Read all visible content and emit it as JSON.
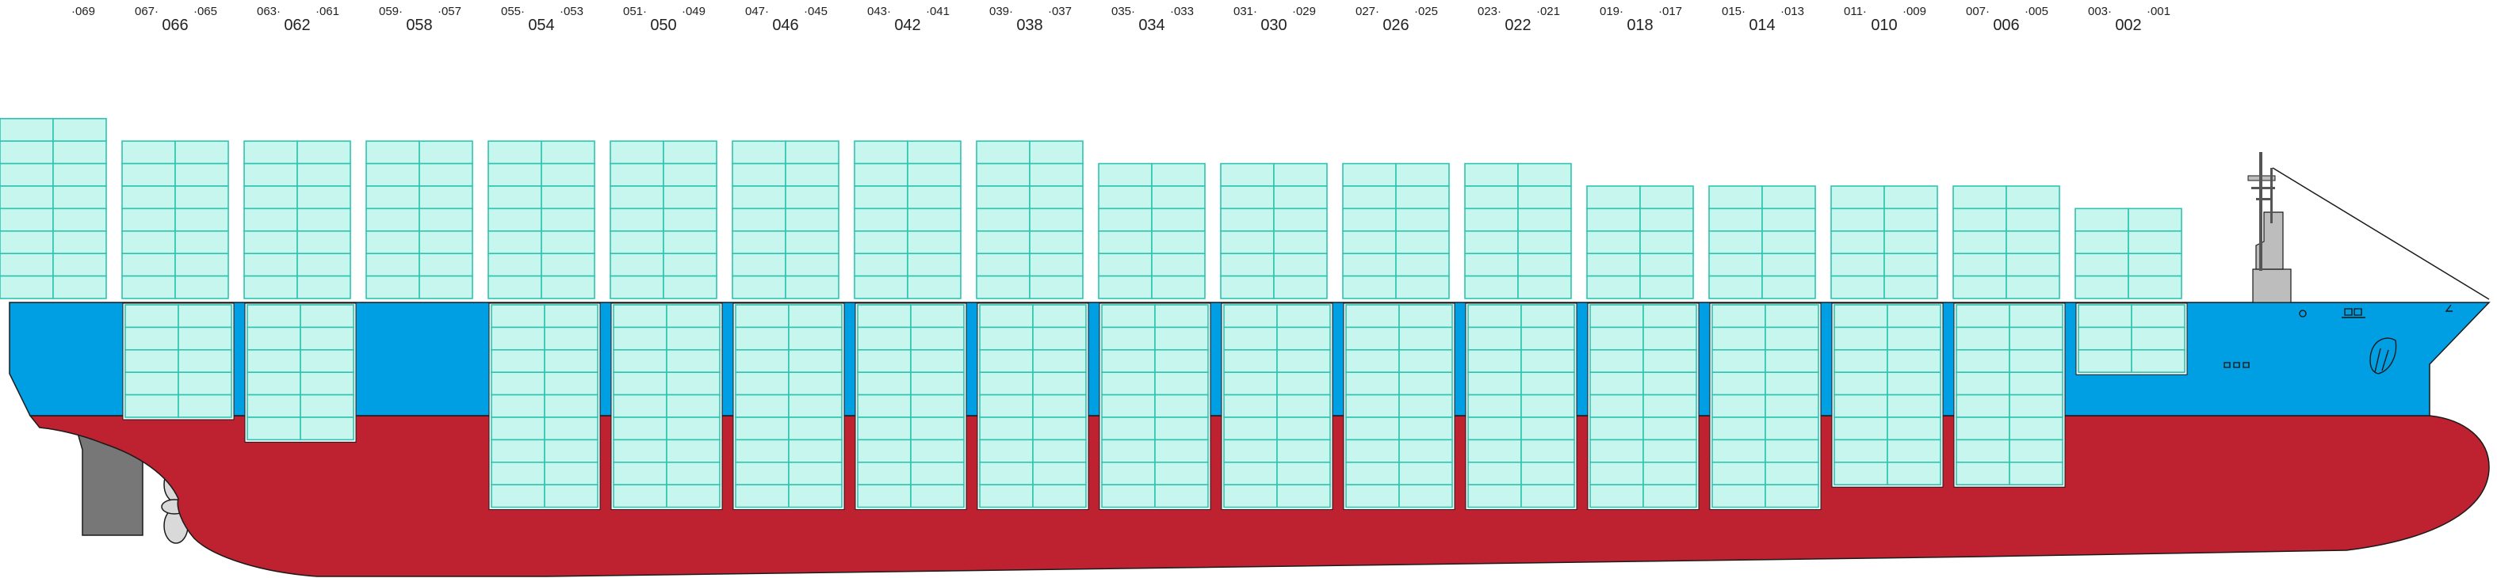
{
  "colors": {
    "hull_upper": "#009fe3",
    "hull_lower": "#be2230",
    "container_fill": "#c6f6ee",
    "container_line": "#2ec4b0",
    "outline": "#1a1a1a",
    "rudder": "#777777",
    "superstructure": "#bdbdbd"
  },
  "bays": [
    {
      "bay_label": "",
      "left_label": "",
      "right_label": "069",
      "deck_tiers": 8,
      "hold_tiers": 0
    },
    {
      "bay_label": "066",
      "left_label": "067",
      "right_label": "065",
      "deck_tiers": 7,
      "hold_tiers": 5
    },
    {
      "bay_label": "062",
      "left_label": "063",
      "right_label": "061",
      "deck_tiers": 7,
      "hold_tiers": 6
    },
    {
      "bay_label": "058",
      "left_label": "059",
      "right_label": "057",
      "deck_tiers": 7,
      "hold_tiers": 0
    },
    {
      "bay_label": "054",
      "left_label": "055",
      "right_label": "053",
      "deck_tiers": 7,
      "hold_tiers": 9
    },
    {
      "bay_label": "050",
      "left_label": "051",
      "right_label": "049",
      "deck_tiers": 7,
      "hold_tiers": 9
    },
    {
      "bay_label": "046",
      "left_label": "047",
      "right_label": "045",
      "deck_tiers": 7,
      "hold_tiers": 9
    },
    {
      "bay_label": "042",
      "left_label": "043",
      "right_label": "041",
      "deck_tiers": 7,
      "hold_tiers": 9
    },
    {
      "bay_label": "038",
      "left_label": "039",
      "right_label": "037",
      "deck_tiers": 7,
      "hold_tiers": 9
    },
    {
      "bay_label": "034",
      "left_label": "035",
      "right_label": "033",
      "deck_tiers": 6,
      "hold_tiers": 9
    },
    {
      "bay_label": "030",
      "left_label": "031",
      "right_label": "029",
      "deck_tiers": 6,
      "hold_tiers": 9
    },
    {
      "bay_label": "026",
      "left_label": "027",
      "right_label": "025",
      "deck_tiers": 6,
      "hold_tiers": 9
    },
    {
      "bay_label": "022",
      "left_label": "023",
      "right_label": "021",
      "deck_tiers": 6,
      "hold_tiers": 9
    },
    {
      "bay_label": "018",
      "left_label": "019",
      "right_label": "017",
      "deck_tiers": 5,
      "hold_tiers": 9
    },
    {
      "bay_label": "014",
      "left_label": "015",
      "right_label": "013",
      "deck_tiers": 5,
      "hold_tiers": 9
    },
    {
      "bay_label": "010",
      "left_label": "011",
      "right_label": "009",
      "deck_tiers": 5,
      "hold_tiers": 8
    },
    {
      "bay_label": "006",
      "left_label": "007",
      "right_label": "005",
      "deck_tiers": 5,
      "hold_tiers": 8
    },
    {
      "bay_label": "002",
      "left_label": "003",
      "right_label": "001",
      "deck_tiers": 4,
      "hold_tiers": 3
    }
  ]
}
